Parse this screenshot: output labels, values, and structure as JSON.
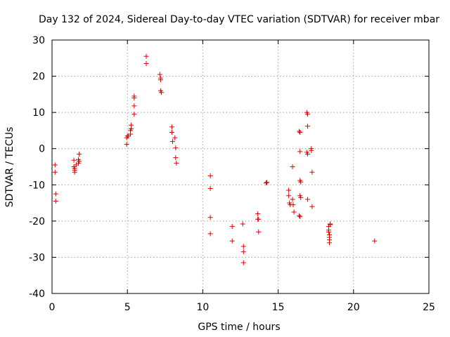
{
  "chart_data": {
    "type": "scatter",
    "title": "Day 132 of 2024, Sidereal Day-to-day VTEC variation (SDTVAR) for receiver mbar",
    "xlabel": "GPS time / hours",
    "ylabel": "SDTVAR / TECUs",
    "xlim": [
      0,
      25
    ],
    "ylim": [
      -40,
      30
    ],
    "xticks": [
      0,
      5,
      10,
      15,
      20,
      25
    ],
    "yticks": [
      -40,
      -30,
      -20,
      -10,
      0,
      10,
      20,
      30
    ],
    "xtick_labels": [
      "0",
      "5",
      "10",
      "15",
      "20",
      "25"
    ],
    "ytick_labels": [
      "-40",
      "-30",
      "-20",
      "-10",
      "0",
      "10",
      "20",
      "30"
    ],
    "grid": true,
    "marker": "+",
    "color": "#e00000",
    "series": [
      {
        "name": "SDTVAR",
        "points": [
          [
            0.2,
            -4.5
          ],
          [
            0.2,
            -6.5
          ],
          [
            0.25,
            -12.5
          ],
          [
            0.25,
            -14.5
          ],
          [
            1.45,
            -3.2
          ],
          [
            1.45,
            -5.0
          ],
          [
            1.5,
            -5.5
          ],
          [
            1.5,
            -6.0
          ],
          [
            1.5,
            -6.5
          ],
          [
            1.6,
            -4.5
          ],
          [
            1.75,
            -3.0
          ],
          [
            1.75,
            -4.0
          ],
          [
            1.8,
            -1.5
          ],
          [
            1.8,
            -3.5
          ],
          [
            4.95,
            1.2
          ],
          [
            4.95,
            3.0
          ],
          [
            5.0,
            3.5
          ],
          [
            5.05,
            3.5
          ],
          [
            5.2,
            4.0
          ],
          [
            5.2,
            5.0
          ],
          [
            5.25,
            5.5
          ],
          [
            5.25,
            6.5
          ],
          [
            5.45,
            14.5
          ],
          [
            5.45,
            14.0
          ],
          [
            5.45,
            11.8
          ],
          [
            5.45,
            9.5
          ],
          [
            6.25,
            25.5
          ],
          [
            6.25,
            23.5
          ],
          [
            7.15,
            20.5
          ],
          [
            7.2,
            19.5
          ],
          [
            7.2,
            19.0
          ],
          [
            7.2,
            16.0
          ],
          [
            7.25,
            15.5
          ],
          [
            7.95,
            6.0
          ],
          [
            7.95,
            4.5
          ],
          [
            8.0,
            2.0
          ],
          [
            8.15,
            3.0
          ],
          [
            8.2,
            0.2
          ],
          [
            8.2,
            -2.5
          ],
          [
            8.25,
            -4.0
          ],
          [
            10.5,
            -7.5
          ],
          [
            10.5,
            -11.0
          ],
          [
            10.5,
            -19.0
          ],
          [
            10.5,
            -23.5
          ],
          [
            11.95,
            -21.5
          ],
          [
            11.95,
            -25.5
          ],
          [
            12.65,
            -20.8
          ],
          [
            12.7,
            -27.0
          ],
          [
            12.7,
            -28.5
          ],
          [
            12.7,
            -31.5
          ],
          [
            13.65,
            -18.0
          ],
          [
            13.65,
            -19.5
          ],
          [
            13.7,
            -19.5
          ],
          [
            13.7,
            -23.0
          ],
          [
            14.2,
            -9.5
          ],
          [
            14.25,
            -9.3
          ],
          [
            15.7,
            -11.5
          ],
          [
            15.7,
            -13.0
          ],
          [
            15.75,
            -15.0
          ],
          [
            15.8,
            -15.5
          ],
          [
            15.95,
            -5.0
          ],
          [
            15.95,
            -14.0
          ],
          [
            16.0,
            -15.5
          ],
          [
            16.05,
            -17.5
          ],
          [
            16.4,
            4.8
          ],
          [
            16.45,
            4.5
          ],
          [
            16.45,
            -0.8
          ],
          [
            16.45,
            -8.8
          ],
          [
            16.5,
            -9.2
          ],
          [
            16.45,
            -13.0
          ],
          [
            16.5,
            -13.5
          ],
          [
            16.4,
            -18.5
          ],
          [
            16.45,
            -18.8
          ],
          [
            16.9,
            10.0
          ],
          [
            16.95,
            9.5
          ],
          [
            16.95,
            6.2
          ],
          [
            16.9,
            -1.0
          ],
          [
            16.95,
            -1.5
          ],
          [
            16.95,
            -14.0
          ],
          [
            17.2,
            0.0
          ],
          [
            17.2,
            -0.5
          ],
          [
            17.25,
            -6.5
          ],
          [
            17.25,
            -16.0
          ],
          [
            18.35,
            -21.5
          ],
          [
            18.35,
            -22.5
          ],
          [
            18.35,
            -23.0
          ],
          [
            18.4,
            -23.8
          ],
          [
            18.4,
            -24.5
          ],
          [
            18.4,
            -25.2
          ],
          [
            18.4,
            -26.0
          ],
          [
            18.45,
            -20.8
          ],
          [
            18.45,
            -21.0
          ],
          [
            21.4,
            -25.5
          ]
        ]
      }
    ]
  }
}
